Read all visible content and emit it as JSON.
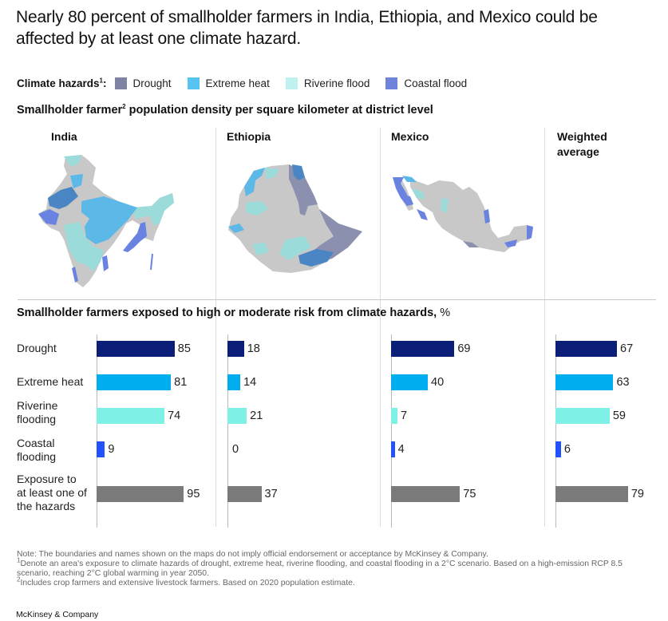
{
  "title": "Nearly 80 percent of smallholder farmers in India, Ethiopia, and Mexico could be affected by at least one climate hazard.",
  "legend": {
    "label": "Climate hazards",
    "label_footnote": "1",
    "label_suffix": ":",
    "items": [
      {
        "name": "Drought",
        "color": "#7f84a3"
      },
      {
        "name": "Extreme heat",
        "color": "#55c4f0"
      },
      {
        "name": "Riverine flood",
        "color": "#bff1ee"
      },
      {
        "name": "Coastal flood",
        "color": "#6f83db"
      }
    ]
  },
  "map_section": {
    "subtitle_pre": "Smallholder farmer",
    "subtitle_footnote": "2",
    "subtitle_post": " population density per square kilometer at district level",
    "map_colors": {
      "base": "#c8c8c8",
      "drought": "#8a90ad",
      "heat": "#5cb8e6",
      "riverine": "#9bdcda",
      "coastal": "#6a83e0",
      "heat_drought": "#4a86c4"
    }
  },
  "columns": [
    "India",
    "Ethiopia",
    "Mexico",
    "Weighted average"
  ],
  "bar_section": {
    "subtitle": "Smallholder farmers exposed to high or moderate risk from climate hazards,",
    "unit": " %"
  },
  "chart_data": {
    "type": "bar",
    "orientation": "horizontal",
    "title": "Smallholder farmers exposed to high or moderate risk from climate hazards, %",
    "xlabel": "",
    "ylabel": "",
    "xlim": [
      0,
      100
    ],
    "grid": false,
    "categories": [
      "Drought",
      "Extreme heat",
      "Riverine flooding",
      "Coastal flooding",
      "Exposure to at least one of the hazards"
    ],
    "category_labels": [
      [
        "Drought"
      ],
      [
        "Extreme heat"
      ],
      [
        "Riverine",
        "flooding"
      ],
      [
        "Coastal",
        "flooding"
      ],
      [
        "Exposure to",
        "at least one of",
        "the hazards"
      ]
    ],
    "category_colors": [
      "#0b1f78",
      "#00aeef",
      "#7ff0e6",
      "#2251ff",
      "#7a7a7a"
    ],
    "series": [
      {
        "name": "India",
        "values": [
          85,
          81,
          74,
          9,
          95
        ]
      },
      {
        "name": "Ethiopia",
        "values": [
          18,
          14,
          21,
          0,
          37
        ]
      },
      {
        "name": "Mexico",
        "values": [
          69,
          40,
          7,
          4,
          75
        ]
      },
      {
        "name": "Weighted average",
        "values": [
          67,
          63,
          59,
          6,
          79
        ]
      }
    ]
  },
  "notes": [
    {
      "marker": "",
      "text": "Note: The boundaries and names shown on the maps do not imply official endorsement or acceptance by McKinsey & Company."
    },
    {
      "marker": "1",
      "text": "Denote an area's exposure to climate hazards of drought, extreme heat, riverine flooding, and coastal flooding in a 2°C scenario. Based on a high-emission RCP 8.5 scenario, reaching 2°C global warming in year 2050."
    },
    {
      "marker": "2",
      "text": "Includes crop farmers and extensive livestock farmers. Based on 2020 population estimate."
    }
  ],
  "brand": "McKinsey & Company"
}
